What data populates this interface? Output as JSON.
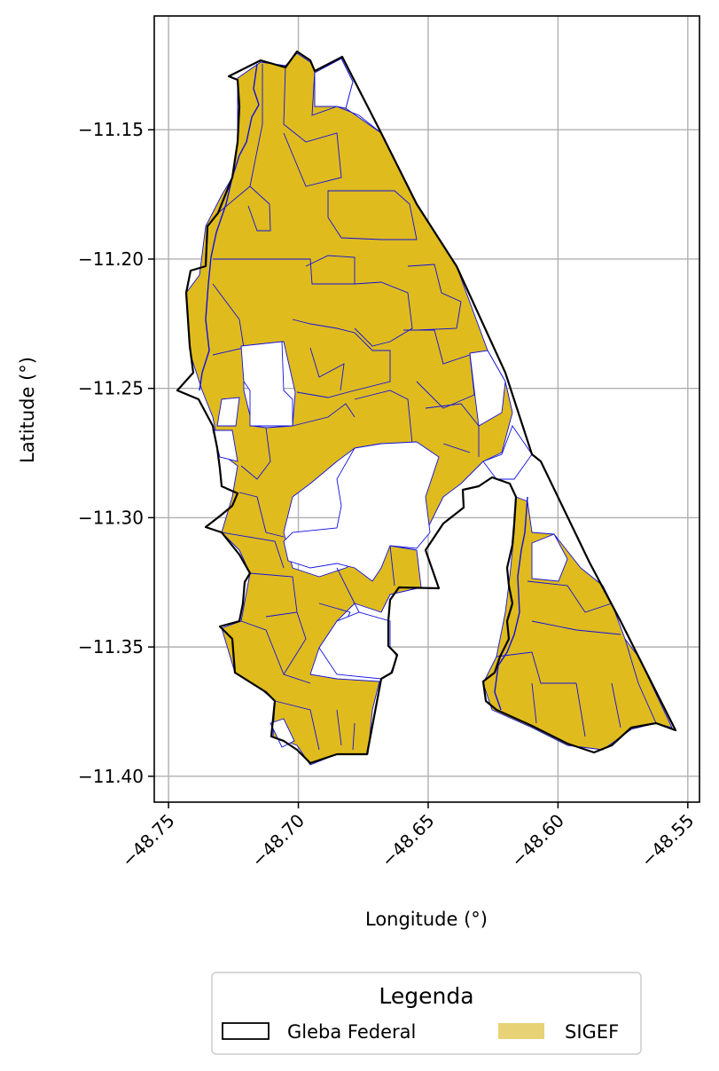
{
  "map": {
    "xlabel": "Longitude (°)",
    "ylabel": "Latitude (°)",
    "xlim": [
      -48.7555,
      -48.5455
    ],
    "ylim": [
      -11.41,
      -11.106
    ],
    "x_ticks": [
      {
        "value": -48.75,
        "label": "−48.75"
      },
      {
        "value": -48.7,
        "label": "−48.70"
      },
      {
        "value": -48.65,
        "label": "−48.65"
      },
      {
        "value": -48.6,
        "label": "−48.60"
      },
      {
        "value": -48.55,
        "label": "−48.55"
      }
    ],
    "y_ticks": [
      {
        "value": -11.15,
        "label": "−11.15"
      },
      {
        "value": -11.2,
        "label": "−11.20"
      },
      {
        "value": -11.25,
        "label": "−11.25"
      },
      {
        "value": -11.3,
        "label": "−11.30"
      },
      {
        "value": -11.35,
        "label": "−11.35"
      },
      {
        "value": -11.4,
        "label": "−11.40"
      }
    ],
    "grid": true
  },
  "legend": {
    "title": "Legenda",
    "items": [
      {
        "label": "Gleba Federal"
      },
      {
        "label": "SIGEF"
      }
    ]
  },
  "colors": {
    "sigef_fill": "#dfbb1e",
    "sigef_edge": "#1010e0",
    "gleba_edge": "#000000",
    "legend_sigef": "#e8d276",
    "grid": "#b0b0b0"
  }
}
